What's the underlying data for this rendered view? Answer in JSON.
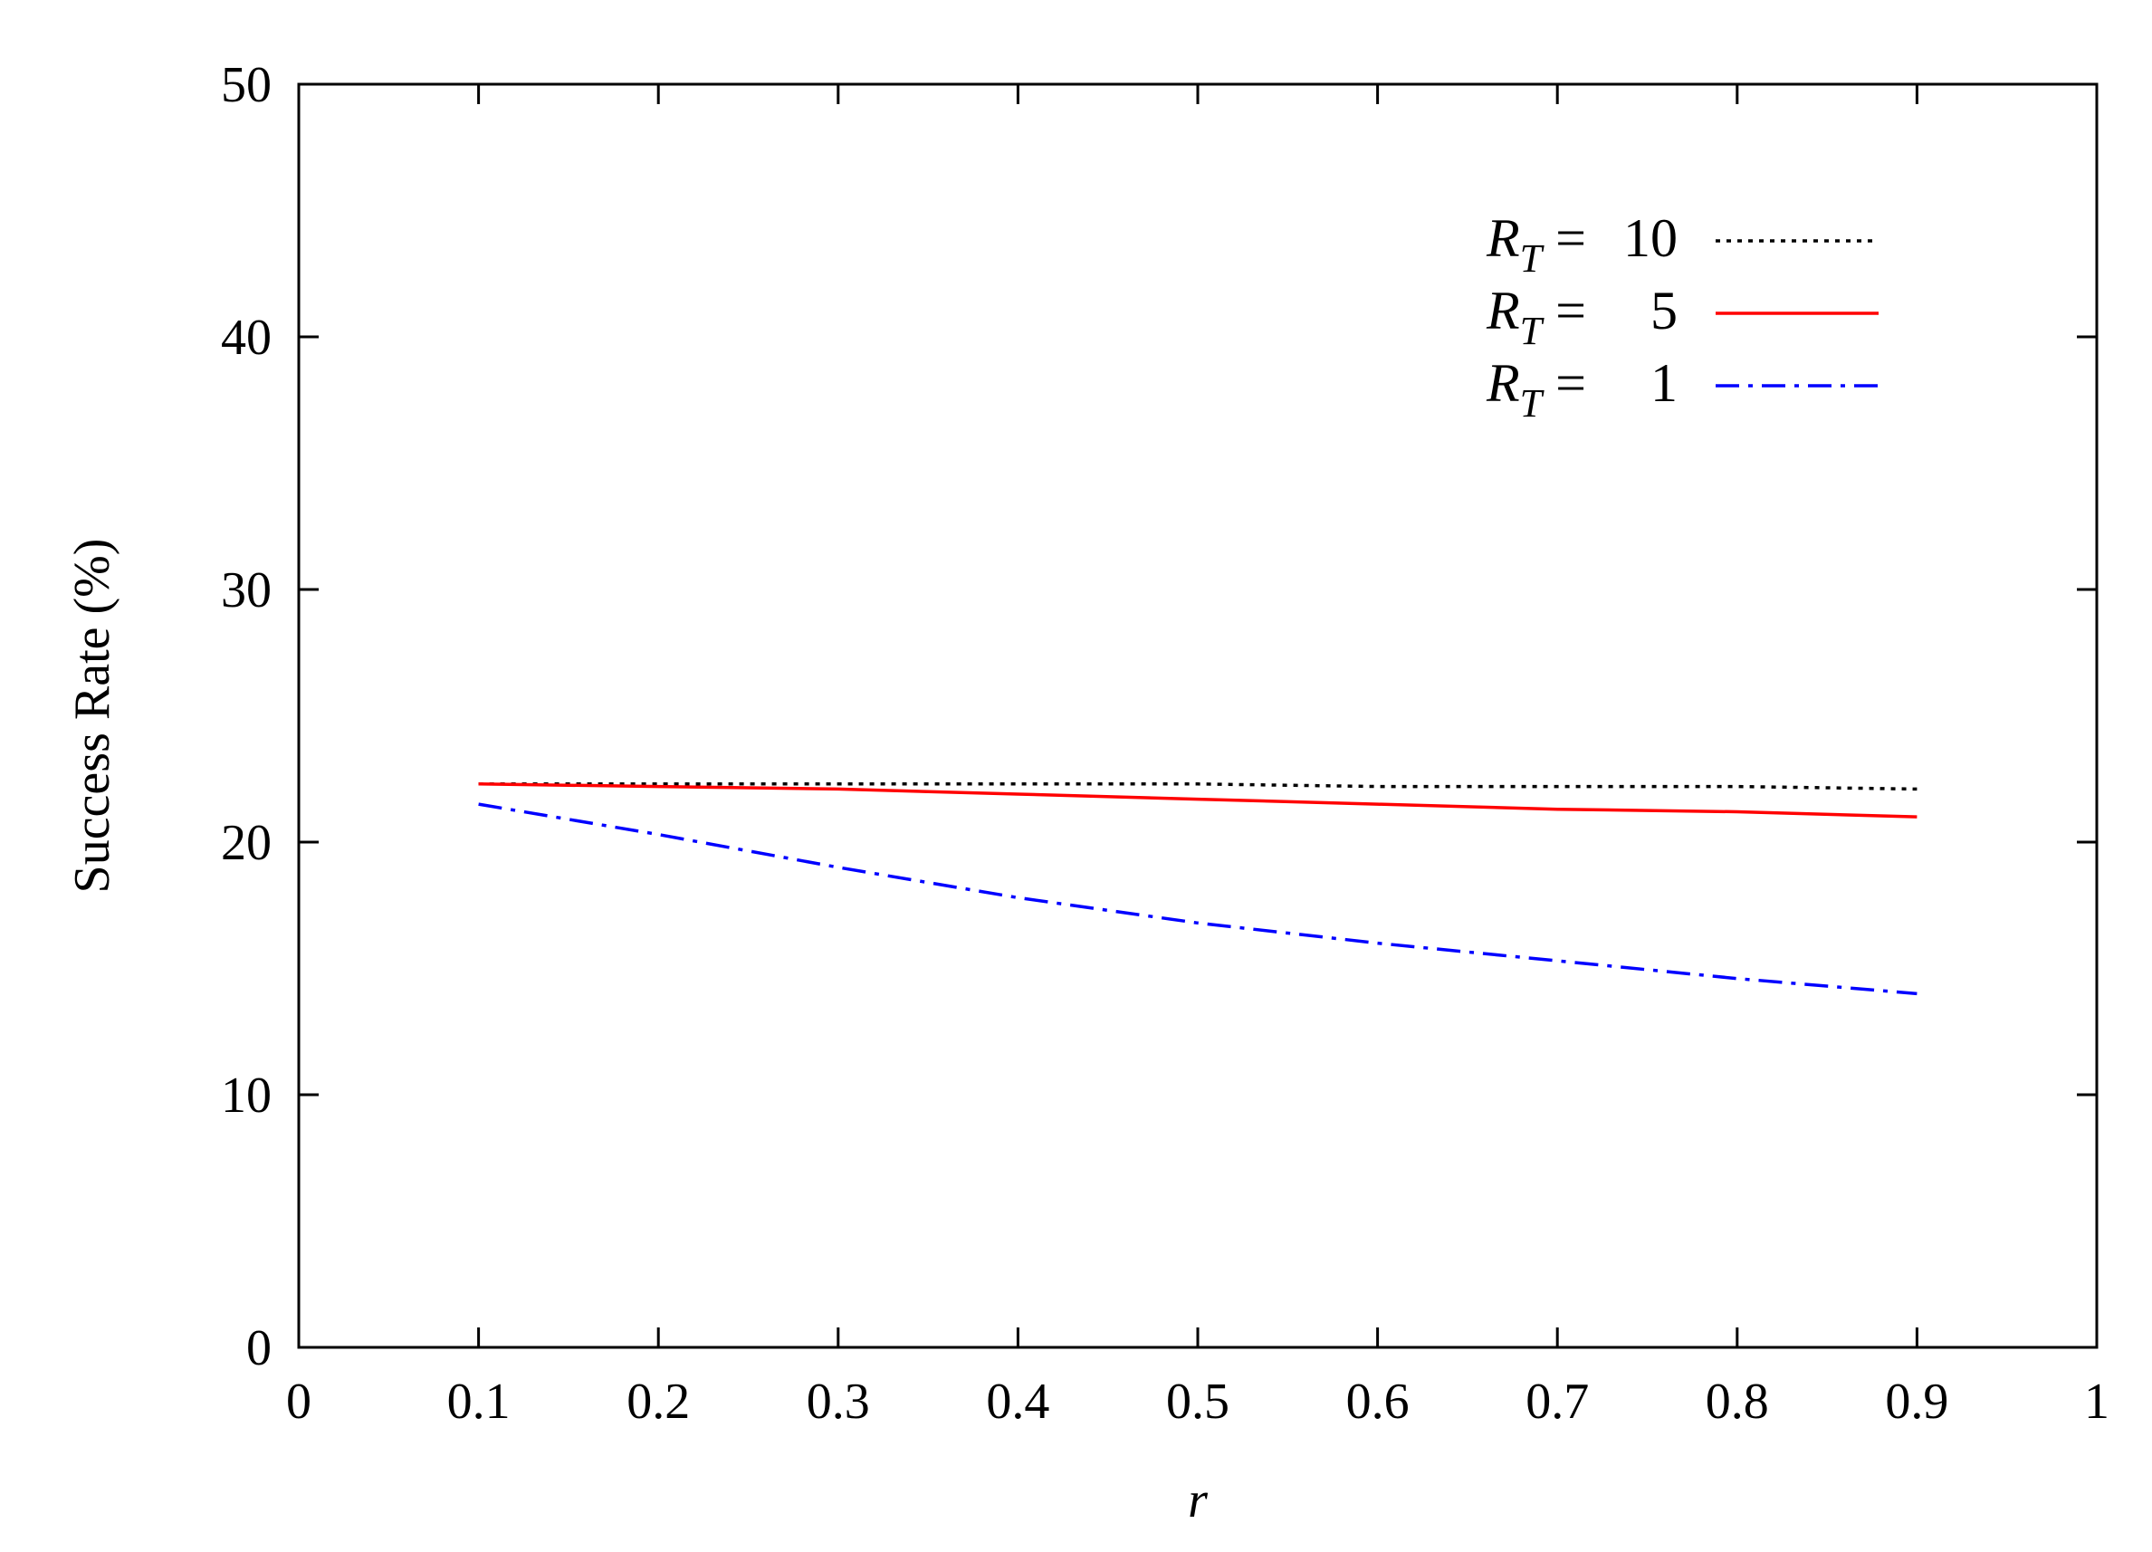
{
  "chart_data": {
    "type": "line",
    "title": "",
    "xlabel": "r",
    "ylabel": "Success Rate (%)",
    "xlim": [
      0,
      1
    ],
    "ylim": [
      0,
      50
    ],
    "xticks": [
      "0",
      "0.1",
      "0.2",
      "0.3",
      "0.4",
      "0.5",
      "0.6",
      "0.7",
      "0.8",
      "0.9",
      "1"
    ],
    "yticks": [
      "0",
      "10",
      "20",
      "30",
      "40",
      "50"
    ],
    "grid": false,
    "legend_position": "top-right",
    "x": [
      0.1,
      0.2,
      0.3,
      0.4,
      0.5,
      0.6,
      0.7,
      0.8,
      0.9
    ],
    "series": [
      {
        "name": "R_T = 10",
        "legend_var": "R",
        "legend_sub": "T",
        "legend_eq": "=",
        "legend_value": "10",
        "color": "#000000",
        "style": "dotted",
        "values": [
          22.3,
          22.3,
          22.3,
          22.3,
          22.3,
          22.2,
          22.2,
          22.2,
          22.1
        ]
      },
      {
        "name": "R_T = 5",
        "legend_var": "R",
        "legend_sub": "T",
        "legend_eq": "=",
        "legend_value": "5",
        "color": "#ff0000",
        "style": "solid",
        "values": [
          22.3,
          22.2,
          22.1,
          21.9,
          21.7,
          21.5,
          21.3,
          21.2,
          21.0
        ]
      },
      {
        "name": "R_T = 1",
        "legend_var": "R",
        "legend_sub": "T",
        "legend_eq": "=",
        "legend_value": "1",
        "color": "#0000ff",
        "style": "dashdot",
        "values": [
          21.5,
          20.3,
          19.0,
          17.8,
          16.8,
          16.0,
          15.3,
          14.6,
          14.0
        ]
      }
    ]
  }
}
